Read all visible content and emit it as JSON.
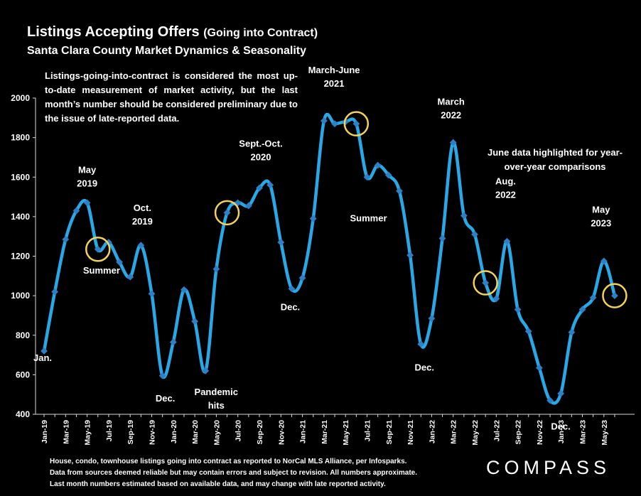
{
  "header": {
    "title_main": "Listings Accepting Offers",
    "title_paren": "(Going into Contract)",
    "subtitle": "Santa Clara County Market Dynamics & Seasonality"
  },
  "notes": {
    "top": "Listings-going-into-contract is considered the most up-to-date measurement of market activity, but the last month’s number should be considered preliminary due to the issue of late-reported data.",
    "june": "June data highlighted for year-over-year comparisons"
  },
  "footer": {
    "line1": "House, condo, townhouse listings going into contract as reported to NorCal MLS Alliance, per Infosparks.",
    "line2": "Data from sources deemed reliable but may contain errors and subject to revision. All numbers approximate.",
    "line3": "Last month numbers estimated based on available data, and may change with late reported activity."
  },
  "logo": {
    "text": "COMPASS"
  },
  "colors": {
    "line": "#29a8e8",
    "marker": "#2e7fc4",
    "highlight": "#f2d25c",
    "background": "#000000"
  },
  "chart_data": {
    "type": "line",
    "title": "Listings Accepting Offers (Going into Contract)",
    "subtitle": "Santa Clara County Market Dynamics & Seasonality",
    "ylim": [
      400,
      2000
    ],
    "yticks": [
      400,
      600,
      800,
      1000,
      1200,
      1400,
      1600,
      1800,
      2000
    ],
    "grid": false,
    "x": [
      "Jan-19",
      "Feb-19",
      "Mar-19",
      "Apr-19",
      "May-19",
      "Jun-19",
      "Jul-19",
      "Aug-19",
      "Sep-19",
      "Oct-19",
      "Nov-19",
      "Dec-19",
      "Jan-20",
      "Feb-20",
      "Mar-20",
      "Apr-20",
      "May-20",
      "Jun-20",
      "Jul-20",
      "Aug-20",
      "Sep-20",
      "Oct-20",
      "Nov-20",
      "Dec-20",
      "Jan-21",
      "Feb-21",
      "Mar-21",
      "Apr-21",
      "May-21",
      "Jun-21",
      "Jul-21",
      "Aug-21",
      "Sep-21",
      "Oct-21",
      "Nov-21",
      "Dec-21",
      "Jan-22",
      "Feb-22",
      "Mar-22",
      "Apr-22",
      "May-22",
      "Jun-22",
      "Jul-22",
      "Aug-22",
      "Sep-22",
      "Oct-22",
      "Nov-22",
      "Dec-22",
      "Jan-23",
      "Feb-23",
      "Mar-23",
      "Apr-23",
      "May-23",
      "Jun-23"
    ],
    "xtick_labels": [
      "Jan-19",
      "Mar-19",
      "May-19",
      "Jul-19",
      "Sep-19",
      "Nov-19",
      "Jan-20",
      "Mar-20",
      "May-20",
      "Jul-20",
      "Sep-20",
      "Nov-20",
      "Jan-21",
      "Mar-21",
      "May-21",
      "Jul-21",
      "Sep-21",
      "Nov-21",
      "Jan-22",
      "Mar-22",
      "May-22",
      "Jul-22",
      "Sep-22",
      "Nov-22",
      "Jan-23",
      "Mar-23",
      "May-23"
    ],
    "series": [
      {
        "values": [
          720,
          1020,
          1285,
          1430,
          1470,
          1235,
          1270,
          1170,
          1095,
          1255,
          1010,
          595,
          765,
          1030,
          870,
          620,
          1135,
          1420,
          1470,
          1455,
          1545,
          1560,
          1270,
          1035,
          1090,
          1390,
          1885,
          1870,
          1880,
          1870,
          1600,
          1660,
          1610,
          1530,
          1205,
          755,
          885,
          1290,
          1775,
          1405,
          1310,
          1065,
          985,
          1275,
          930,
          820,
          635,
          470,
          505,
          815,
          930,
          990,
          1175,
          1000
        ]
      }
    ],
    "highlighted": [
      "Jun-19",
      "Jun-20",
      "Jun-21",
      "Jun-22",
      "Jun-23"
    ],
    "annotations": [
      {
        "lines": [
          "Jan."
        ],
        "x": "Jan-19"
      },
      {
        "lines": [
          "May",
          "2019"
        ],
        "x": "May-19"
      },
      {
        "lines": [
          "Summer"
        ],
        "x": "Jul-19"
      },
      {
        "lines": [
          "Oct.",
          "2019"
        ],
        "x": "Oct-19"
      },
      {
        "lines": [
          "Dec."
        ],
        "x": "Dec-19"
      },
      {
        "lines": [
          "Pandemic",
          "hits"
        ],
        "x": "Apr-20"
      },
      {
        "lines": [
          "Sept.-Oct.",
          "2020"
        ],
        "x": "Sep-20"
      },
      {
        "lines": [
          "Dec."
        ],
        "x": "Dec-20"
      },
      {
        "lines": [
          "March-June",
          "2021"
        ],
        "x": "Apr-21"
      },
      {
        "lines": [
          "Summer"
        ],
        "x": "Jul-21"
      },
      {
        "lines": [
          "Dec."
        ],
        "x": "Dec-21"
      },
      {
        "lines": [
          "March",
          "2022"
        ],
        "x": "Mar-22"
      },
      {
        "lines": [
          "Aug.",
          "2022"
        ],
        "x": "Aug-22"
      },
      {
        "lines": [
          "Dec."
        ],
        "x": "Dec-22"
      },
      {
        "lines": [
          "May",
          "2023"
        ],
        "x": "May-23"
      }
    ]
  }
}
